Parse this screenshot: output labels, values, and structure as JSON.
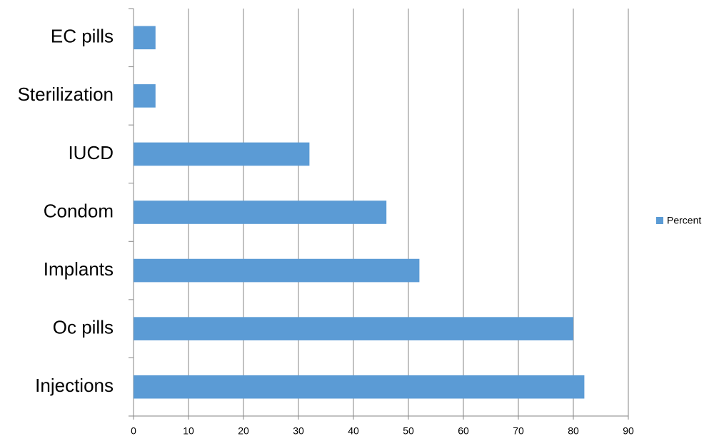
{
  "chart_data": {
    "type": "bar",
    "orientation": "horizontal",
    "categories": [
      "EC pills",
      "Sterilization",
      "IUCD",
      "Condom",
      "Implants",
      "Oc pills",
      "Injections"
    ],
    "series": [
      {
        "name": "Percent",
        "color": "#5b9bd5",
        "values": [
          4,
          4,
          32,
          46,
          52,
          80,
          82
        ]
      }
    ],
    "xlim": [
      0,
      90
    ],
    "xticks": [
      0,
      10,
      20,
      30,
      40,
      50,
      60,
      70,
      80,
      90
    ],
    "grid": true,
    "legend": "right"
  }
}
